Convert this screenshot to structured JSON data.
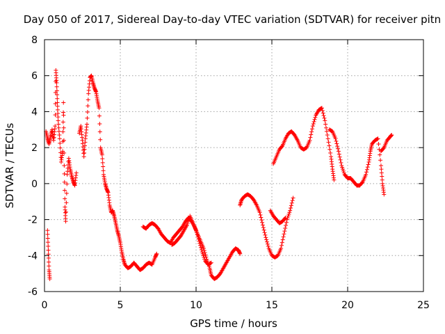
{
  "chart_data": {
    "type": "scatter",
    "title": "Day 050 of 2017, Sidereal Day-to-day VTEC variation (SDTVAR) for receiver pitn",
    "xlabel": "GPS time / hours",
    "ylabel": "SDTVAR / TECUs",
    "xlim": [
      0,
      25
    ],
    "ylim": [
      -6,
      8
    ],
    "xticks": [
      0,
      5,
      10,
      15,
      20,
      25
    ],
    "yticks": [
      -6,
      -4,
      -2,
      0,
      2,
      4,
      6,
      8
    ],
    "xtick_labels": [
      "0",
      "5",
      "10",
      "15",
      "20",
      "25"
    ],
    "ytick_labels": [
      "-6",
      "-4",
      "-2",
      "0",
      "2",
      "4",
      "6",
      "8"
    ],
    "grid": true,
    "marker": "+",
    "color": "#ff0000",
    "series": [
      {
        "name": "SDTVAR",
        "segments": [
          [
            [
              0.1,
              2.9
            ],
            [
              0.2,
              2.5
            ],
            [
              0.3,
              2.2
            ],
            [
              0.4,
              2.6
            ],
            [
              0.5,
              3.0
            ],
            [
              0.6,
              2.4
            ],
            [
              0.7,
              3.2
            ],
            [
              0.75,
              6.3
            ],
            [
              0.8,
              5.6
            ],
            [
              0.85,
              4.5
            ],
            [
              0.9,
              3.5
            ],
            [
              1.0,
              2.5
            ],
            [
              1.1,
              1.2
            ],
            [
              1.2,
              1.8
            ],
            [
              1.25,
              4.5
            ],
            [
              1.3,
              1.0
            ],
            [
              1.35,
              -1.3
            ],
            [
              1.4,
              -2.1
            ],
            [
              1.5,
              0.5
            ],
            [
              1.6,
              1.4
            ],
            [
              1.7,
              0.8
            ],
            [
              1.8,
              0.4
            ],
            [
              1.9,
              0.1
            ],
            [
              2.0,
              -0.1
            ],
            [
              2.1,
              0.6
            ]
          ],
          [
            [
              0.2,
              -2.6
            ],
            [
              0.25,
              -3.7
            ],
            [
              0.3,
              -4.8
            ],
            [
              0.35,
              -5.3
            ]
          ],
          [
            [
              2.3,
              2.8
            ],
            [
              2.4,
              3.2
            ],
            [
              2.5,
              2.4
            ],
            [
              2.6,
              1.5
            ],
            [
              2.7,
              2.5
            ],
            [
              2.8,
              3.3
            ],
            [
              2.9,
              5.0
            ],
            [
              3.0,
              5.9
            ],
            [
              3.1,
              6.0
            ],
            [
              3.2,
              5.6
            ],
            [
              3.3,
              5.3
            ],
            [
              3.4,
              5.1
            ],
            [
              3.5,
              4.6
            ],
            [
              3.6,
              4.2
            ],
            [
              3.7,
              2.0
            ],
            [
              3.8,
              1.6
            ],
            [
              3.9,
              0.5
            ],
            [
              4.0,
              0.0
            ],
            [
              4.1,
              -0.3
            ],
            [
              4.2,
              -0.5
            ],
            [
              4.3,
              -1.2
            ],
            [
              4.4,
              -1.6
            ],
            [
              4.5,
              -1.5
            ],
            [
              4.6,
              -1.8
            ],
            [
              4.7,
              -2.2
            ],
            [
              4.8,
              -2.6
            ],
            [
              4.9,
              -2.9
            ],
            [
              5.0,
              -3.3
            ],
            [
              5.1,
              -3.8
            ],
            [
              5.2,
              -4.2
            ],
            [
              5.3,
              -4.5
            ],
            [
              5.5,
              -4.7
            ],
            [
              5.7,
              -4.6
            ],
            [
              5.9,
              -4.4
            ],
            [
              6.1,
              -4.6
            ],
            [
              6.3,
              -4.8
            ],
            [
              6.5,
              -4.7
            ],
            [
              6.7,
              -4.5
            ],
            [
              6.9,
              -4.4
            ],
            [
              7.1,
              -4.5
            ],
            [
              7.3,
              -4.1
            ],
            [
              7.4,
              -3.9
            ]
          ],
          [
            [
              6.5,
              -2.4
            ],
            [
              6.7,
              -2.5
            ],
            [
              6.9,
              -2.3
            ],
            [
              7.1,
              -2.2
            ],
            [
              7.3,
              -2.3
            ],
            [
              7.5,
              -2.5
            ],
            [
              7.7,
              -2.8
            ],
            [
              7.9,
              -3.0
            ],
            [
              8.1,
              -3.2
            ],
            [
              8.3,
              -3.3
            ],
            [
              8.5,
              -3.0
            ],
            [
              8.7,
              -2.8
            ],
            [
              8.9,
              -2.6
            ],
            [
              9.1,
              -2.4
            ],
            [
              9.3,
              -2.1
            ],
            [
              9.5,
              -1.9
            ],
            [
              9.7,
              -2.1
            ],
            [
              9.9,
              -2.4
            ],
            [
              10.1,
              -2.8
            ],
            [
              10.3,
              -3.2
            ],
            [
              10.5,
              -3.6
            ],
            [
              10.7,
              -4.2
            ],
            [
              10.9,
              -4.7
            ],
            [
              11.0,
              -5.1
            ],
            [
              11.2,
              -5.3
            ],
            [
              11.4,
              -5.2
            ],
            [
              11.6,
              -5.0
            ],
            [
              11.8,
              -4.7
            ],
            [
              12.0,
              -4.4
            ],
            [
              12.2,
              -4.1
            ],
            [
              12.4,
              -3.8
            ],
            [
              12.6,
              -3.6
            ],
            [
              12.8,
              -3.7
            ],
            [
              12.9,
              -3.9
            ]
          ],
          [
            [
              8.4,
              -3.4
            ],
            [
              8.6,
              -3.3
            ],
            [
              8.8,
              -3.1
            ],
            [
              9.0,
              -2.9
            ],
            [
              9.2,
              -2.6
            ],
            [
              9.4,
              -2.3
            ],
            [
              9.6,
              -1.8
            ],
            [
              9.8,
              -2.2
            ],
            [
              10.0,
              -2.6
            ],
            [
              10.2,
              -3.2
            ],
            [
              10.4,
              -3.8
            ],
            [
              10.6,
              -4.3
            ],
            [
              10.8,
              -4.5
            ],
            [
              11.0,
              -4.4
            ]
          ],
          [
            [
              12.9,
              -1.2
            ],
            [
              13.0,
              -0.9
            ],
            [
              13.2,
              -0.7
            ],
            [
              13.4,
              -0.6
            ],
            [
              13.6,
              -0.7
            ],
            [
              13.8,
              -0.9
            ],
            [
              14.0,
              -1.2
            ],
            [
              14.2,
              -1.6
            ],
            [
              14.4,
              -2.3
            ],
            [
              14.6,
              -3.0
            ],
            [
              14.8,
              -3.6
            ],
            [
              15.0,
              -4.0
            ],
            [
              15.2,
              -4.1
            ],
            [
              15.4,
              -4.0
            ],
            [
              15.6,
              -3.6
            ],
            [
              15.8,
              -2.8
            ],
            [
              16.0,
              -2.0
            ],
            [
              16.2,
              -1.5
            ],
            [
              16.4,
              -0.8
            ]
          ],
          [
            [
              14.9,
              -1.5
            ],
            [
              15.1,
              -1.8
            ],
            [
              15.3,
              -2.0
            ],
            [
              15.5,
              -2.2
            ],
            [
              15.7,
              -2.1
            ],
            [
              15.9,
              -1.9
            ]
          ],
          [
            [
              15.1,
              1.1
            ],
            [
              15.3,
              1.5
            ],
            [
              15.5,
              1.9
            ],
            [
              15.7,
              2.1
            ],
            [
              15.9,
              2.5
            ],
            [
              16.1,
              2.8
            ],
            [
              16.3,
              2.9
            ],
            [
              16.5,
              2.7
            ],
            [
              16.7,
              2.4
            ],
            [
              16.9,
              2.0
            ],
            [
              17.1,
              1.9
            ],
            [
              17.3,
              2.0
            ],
            [
              17.5,
              2.4
            ],
            [
              17.7,
              3.2
            ],
            [
              17.9,
              3.8
            ],
            [
              18.1,
              4.1
            ],
            [
              18.3,
              4.2
            ],
            [
              18.5,
              3.5
            ],
            [
              18.7,
              2.5
            ],
            [
              18.9,
              1.5
            ],
            [
              19.0,
              0.8
            ],
            [
              19.1,
              0.2
            ]
          ],
          [
            [
              18.8,
              3.0
            ],
            [
              19.0,
              2.9
            ],
            [
              19.2,
              2.5
            ],
            [
              19.4,
              1.8
            ],
            [
              19.6,
              1.0
            ],
            [
              19.8,
              0.5
            ],
            [
              20.0,
              0.3
            ],
            [
              20.2,
              0.3
            ],
            [
              20.4,
              0.1
            ],
            [
              20.6,
              -0.1
            ],
            [
              20.8,
              -0.1
            ],
            [
              21.0,
              0.1
            ],
            [
              21.2,
              0.5
            ],
            [
              21.4,
              1.2
            ],
            [
              21.5,
              1.8
            ],
            [
              21.6,
              2.2
            ],
            [
              21.8,
              2.4
            ],
            [
              22.0,
              2.5
            ],
            [
              22.2,
              1.0
            ],
            [
              22.3,
              0.0
            ],
            [
              22.4,
              -0.6
            ]
          ],
          [
            [
              22.2,
              1.8
            ],
            [
              22.4,
              2.0
            ],
            [
              22.6,
              2.4
            ],
            [
              22.8,
              2.6
            ],
            [
              22.9,
              2.7
            ]
          ]
        ]
      }
    ]
  }
}
